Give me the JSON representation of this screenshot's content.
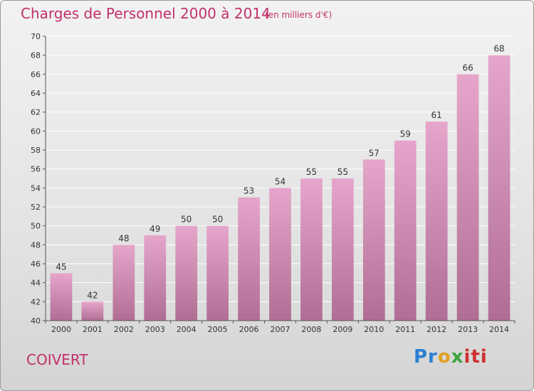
{
  "header": {
    "title": "Charges de Personnel 2000 à 2014",
    "subtitle": "(en milliers d'€)"
  },
  "footer": {
    "commune": "COIVERT",
    "logo_text": "Proxiti"
  },
  "colors": {
    "title": "#c2306b",
    "bar_top": "#e6a6cb",
    "bar_bottom": "#b06e94",
    "axis": "#555555"
  },
  "chart_data": {
    "type": "bar",
    "title": "Charges de Personnel 2000 à 2014",
    "subtitle": "(en milliers d'€)",
    "xlabel": "",
    "ylabel": "",
    "categories": [
      "2000",
      "2001",
      "2002",
      "2003",
      "2004",
      "2005",
      "2006",
      "2007",
      "2008",
      "2009",
      "2010",
      "2011",
      "2012",
      "2013",
      "2014"
    ],
    "values": [
      45,
      42,
      48,
      49,
      50,
      50,
      53,
      54,
      55,
      55,
      57,
      59,
      61,
      66,
      68
    ],
    "ylim": [
      40,
      70
    ],
    "yticks": [
      40,
      42,
      44,
      46,
      48,
      50,
      52,
      54,
      56,
      58,
      60,
      62,
      64,
      66,
      68,
      70
    ],
    "grid": true,
    "legend": "none"
  }
}
